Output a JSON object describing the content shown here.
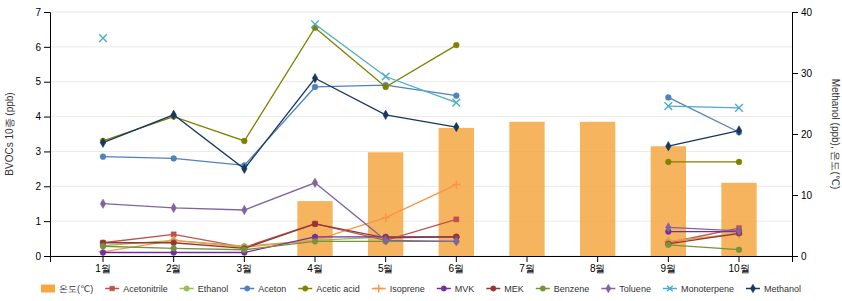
{
  "chart_data": {
    "type": "bar",
    "categories": [
      "1월",
      "2월",
      "3월",
      "4월",
      "5월",
      "6월",
      "7월",
      "8월",
      "9월",
      "10월"
    ],
    "ylabel": "BVOCs 10종 (ppb)",
    "y2label": "Methanol (ppb), 온도(℃)",
    "ylim": [
      0,
      7
    ],
    "yticks": [
      0,
      1,
      2,
      3,
      4,
      5,
      6,
      7
    ],
    "y2lim": [
      0,
      40
    ],
    "y2ticks": [
      0,
      10,
      20,
      30,
      40
    ],
    "grid": true,
    "legend": "bottom",
    "series": [
      {
        "name": "온도(℃)",
        "type": "bar",
        "axis": "y2",
        "color": "#F5A742",
        "values": [
          0,
          0,
          0,
          9,
          17,
          21,
          22,
          22,
          18,
          12
        ]
      },
      {
        "name": "Acetonitrile",
        "type": "line",
        "color": "#C0504D",
        "marker": "square",
        "values": [
          0.38,
          0.62,
          0.25,
          0.93,
          0.45,
          1.05,
          null,
          null,
          0.38,
          0.8
        ]
      },
      {
        "name": "Ethanol",
        "type": "line",
        "color": "#9BBB59",
        "marker": "circle",
        "values": [
          0.3,
          0.45,
          0.28,
          0.45,
          0.55,
          0.55,
          null,
          null,
          0.42,
          0.65
        ]
      },
      {
        "name": "Aceton",
        "type": "line",
        "color": "#4F81BD",
        "marker": "circle",
        "values": [
          2.85,
          2.8,
          2.6,
          4.85,
          4.9,
          4.6,
          null,
          null,
          4.55,
          3.55
        ]
      },
      {
        "name": "Acetic acid",
        "type": "line",
        "color": "#808000",
        "marker": "circle",
        "values": [
          3.3,
          4.0,
          3.3,
          6.55,
          4.85,
          6.05,
          null,
          null,
          2.7,
          2.7
        ]
      },
      {
        "name": "Isoprene",
        "type": "line",
        "color": "#F79646",
        "marker": "plus",
        "values": [
          0.12,
          0.45,
          0.25,
          0.45,
          1.1,
          2.05,
          null,
          null,
          0.42,
          0.62
        ]
      },
      {
        "name": "MVK",
        "type": "line",
        "color": "#7030A0",
        "marker": "circle",
        "values": [
          0.1,
          0.1,
          0.1,
          0.55,
          0.55,
          0.55,
          null,
          null,
          0.7,
          0.7
        ]
      },
      {
        "name": "MEK",
        "type": "line",
        "color": "#953735",
        "marker": "circle",
        "values": [
          0.38,
          0.38,
          0.22,
          0.92,
          0.52,
          0.55,
          null,
          null,
          0.35,
          0.65
        ]
      },
      {
        "name": "Benzene",
        "type": "line",
        "color": "#76923C",
        "marker": "circle",
        "values": [
          0.28,
          0.22,
          0.18,
          0.42,
          0.42,
          0.42,
          null,
          null,
          0.32,
          0.18
        ]
      },
      {
        "name": "Toluene",
        "type": "line",
        "color": "#8064A2",
        "marker": "diamond",
        "values": [
          1.5,
          1.38,
          1.32,
          2.1,
          0.45,
          0.42,
          null,
          null,
          0.82,
          0.72
        ]
      },
      {
        "name": "Monoterpene",
        "type": "line",
        "color": "#4BACC6",
        "marker": "x",
        "values": [
          6.25,
          null,
          null,
          6.65,
          5.15,
          4.4,
          null,
          null,
          4.3,
          4.25
        ]
      },
      {
        "name": "Methanol",
        "type": "line",
        "color": "#17375E",
        "marker": "diamond",
        "values": [
          3.25,
          4.05,
          2.5,
          5.1,
          4.05,
          3.7,
          null,
          null,
          3.15,
          3.6
        ]
      }
    ]
  }
}
